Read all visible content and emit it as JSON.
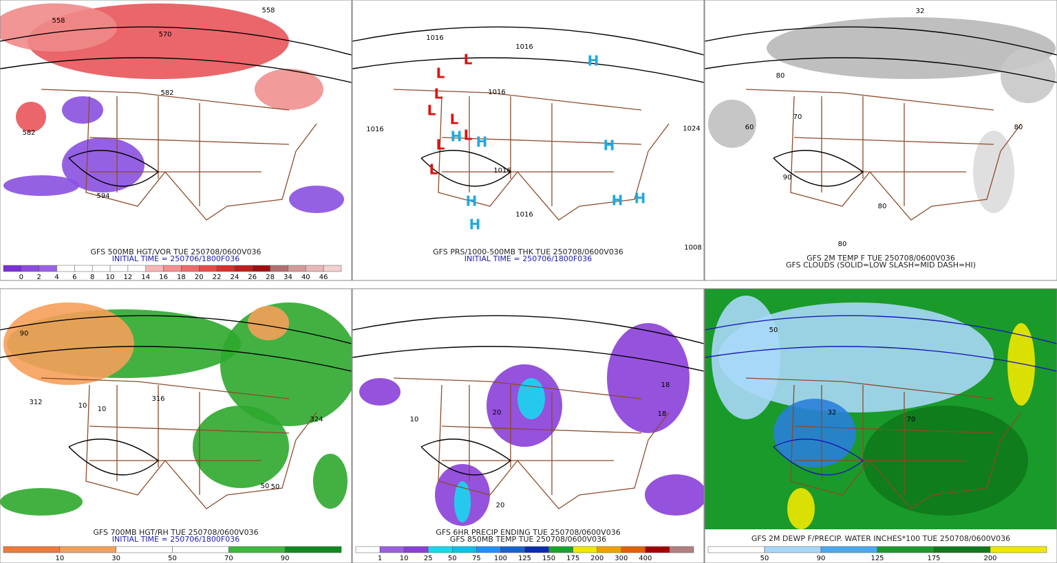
{
  "panels": [
    {
      "captions": [
        "GFS 500MB HGT/VOR TUE 250708/0600V036",
        "INITIAL TIME = 250706/1800F036"
      ],
      "colorbar": [
        "0",
        "2",
        "4",
        "6",
        "8",
        "10",
        "12",
        "14",
        "16",
        "18",
        "20",
        "22",
        "24",
        "26",
        "28",
        "34",
        "40",
        "46"
      ],
      "labels": [
        "558",
        "570",
        "582",
        "582",
        "594",
        "558"
      ]
    },
    {
      "captions": [
        "GFS PRS/1000-500MB THK TUE 250708/0600V036",
        "INITIAL TIME = 250706/1800F036"
      ],
      "labels": [
        "1016",
        "1016",
        "1016",
        "1016",
        "1016",
        "1016",
        "1024",
        "1008"
      ],
      "lows": [
        "L",
        "L",
        "L",
        "L",
        "L",
        "L",
        "L",
        "L"
      ],
      "highs": [
        "H",
        "H",
        "H",
        "H",
        "H",
        "H",
        "H",
        "H"
      ]
    },
    {
      "captions": [
        "GFS 2M TEMP F TUE 250708/0600V036",
        "GFS CLOUDS (SOLID=LOW SLASH=MID DASH=HI)"
      ],
      "labels": [
        "80",
        "70",
        "60",
        "90",
        "80",
        "80",
        "80",
        "32"
      ]
    },
    {
      "captions": [
        "GFS 700MB HGT/RH TUE 250708/0600V036",
        "INITIAL TIME = 250706/1800F036"
      ],
      "colorbar": [
        "10",
        "30",
        "50",
        "70",
        "90"
      ],
      "labels": [
        "312",
        "10",
        "10",
        "50",
        "50",
        "90",
        "316",
        "324"
      ]
    },
    {
      "captions": [
        "GFS 6HR PRECIP ENDING TUE 250708/0600V036",
        "GFS 850MB TEMP TUE 250708/0600V036"
      ],
      "colorbar": [
        "1",
        "10",
        "25",
        "50",
        "75",
        "100",
        "125",
        "150",
        "175",
        "200",
        "300",
        "400"
      ],
      "labels": [
        "20",
        "10",
        "20",
        "18",
        "18"
      ]
    },
    {
      "captions": [
        "GFS 2M DEWP F/PRECIP. WATER INCHES*100 TUE 250708/0600V036"
      ],
      "colorbar": [
        "50",
        "90",
        "125",
        "175",
        "200"
      ],
      "labels": [
        "50",
        "32",
        "70"
      ]
    }
  ]
}
